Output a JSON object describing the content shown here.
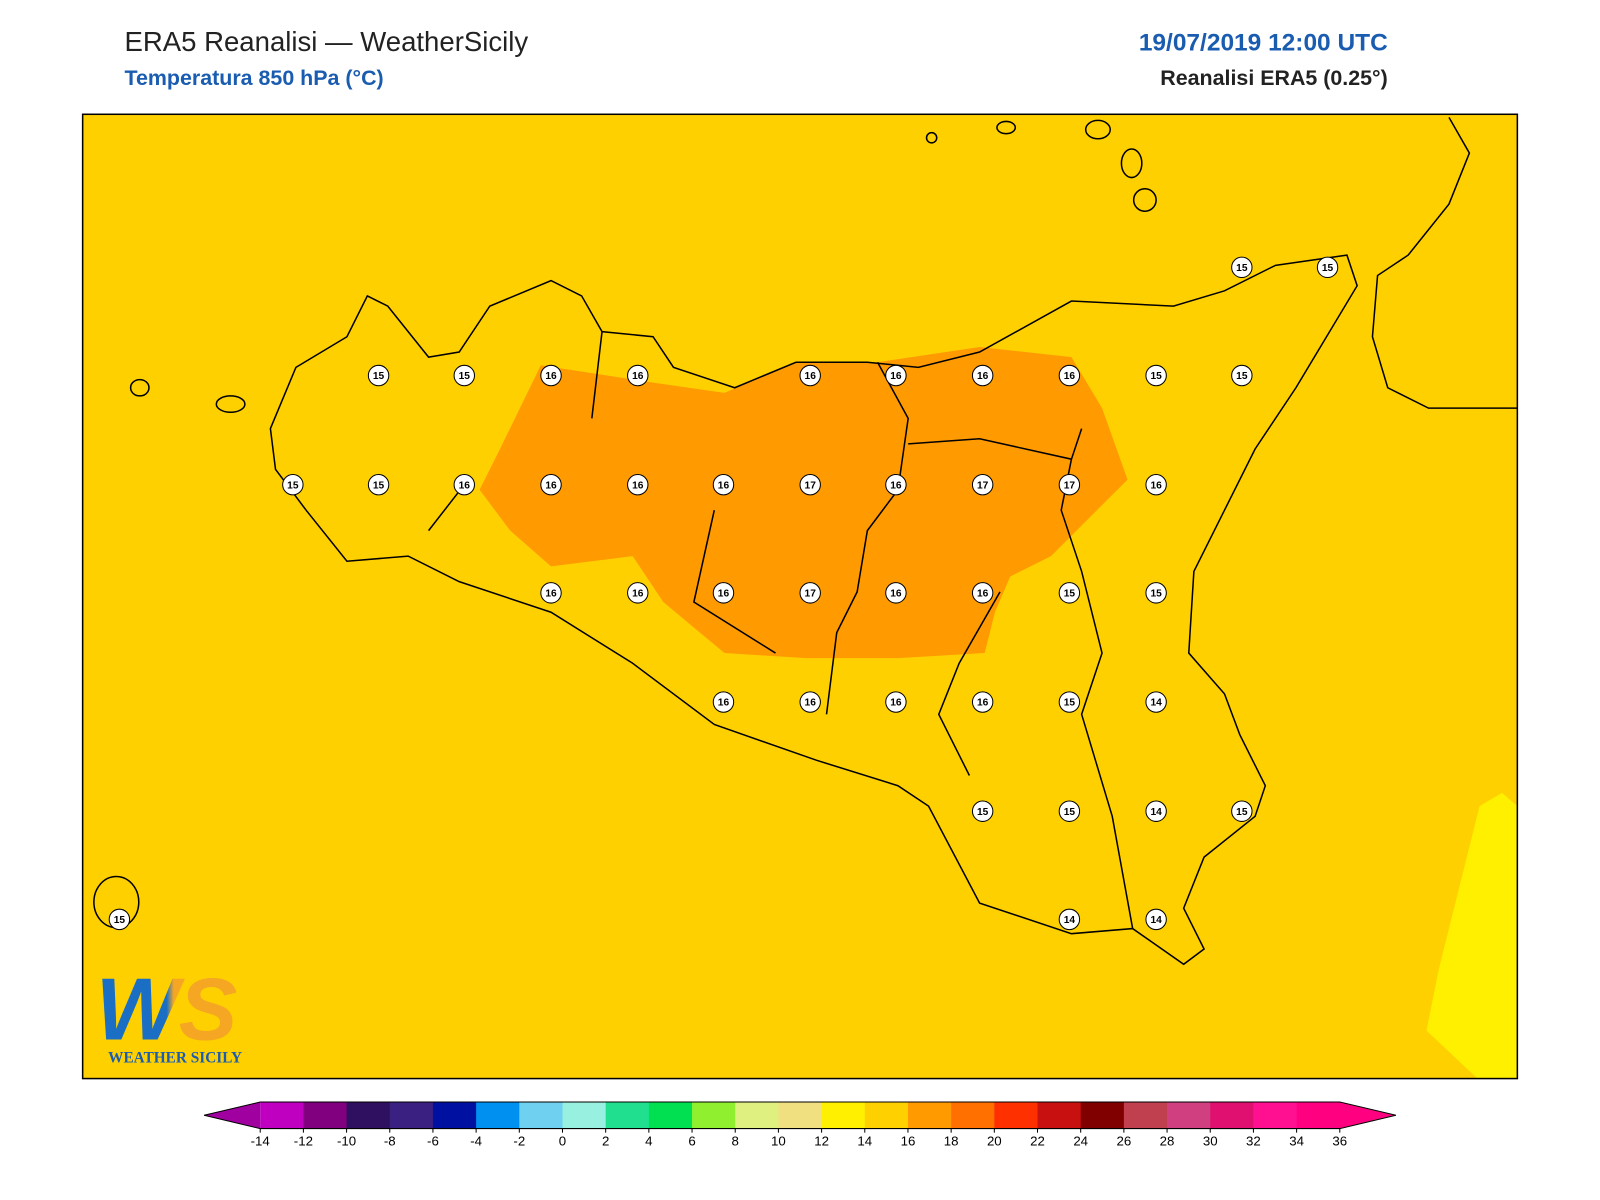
{
  "header": {
    "title": "ERA5 Reanalisi — WeatherSicily",
    "subtitle": "Temperatura 850 hPa (°C)",
    "datetime": "19/07/2019 12:00 UTC",
    "source": "Reanalisi ERA5 (0.25°)"
  },
  "stations": [
    15,
    15,
    15,
    15,
    16,
    16,
    16,
    16,
    16,
    16,
    15,
    15,
    15,
    15,
    16,
    16,
    16,
    16,
    17,
    16,
    17,
    17,
    16,
    16,
    16,
    16,
    17,
    16,
    16,
    15,
    15,
    16,
    16,
    16,
    16,
    15,
    14,
    15,
    15,
    14,
    15,
    15,
    14,
    14
  ],
  "colorbar": {
    "ticks": [
      -14,
      -12,
      -10,
      -8,
      -6,
      -4,
      -2,
      0,
      2,
      4,
      6,
      8,
      10,
      12,
      14,
      16,
      18,
      20,
      22,
      24,
      26,
      28,
      30,
      32,
      34,
      36
    ],
    "colors": [
      "#c000c0",
      "#800080",
      "#2f0f5f",
      "#3a2080",
      "#0010a0",
      "#0090f0",
      "#70d0f0",
      "#98f0e0",
      "#20e090",
      "#00e050",
      "#90f030",
      "#e0f080",
      "#f0e080",
      "#fff000",
      "#ffd000",
      "#ff9a00",
      "#ff7000",
      "#ff3000",
      "#c81010",
      "#800000",
      "#c04050",
      "#d04080",
      "#e01070",
      "#ff1090",
      "#ff0080"
    ],
    "under": "#a000a0",
    "over": "#ff0080"
  },
  "logo": {
    "mark": "WS",
    "text": "WEATHER SICILY"
  }
}
